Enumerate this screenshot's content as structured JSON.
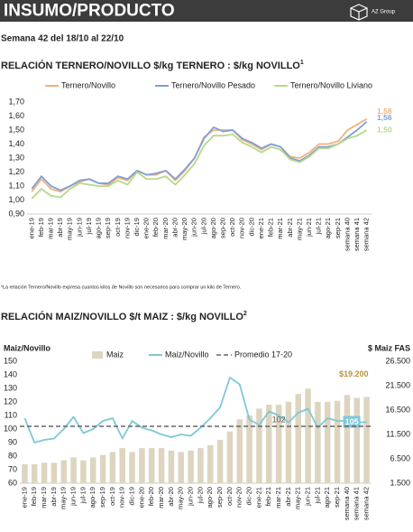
{
  "header": {
    "title": "INSUMO/PRODUCTO",
    "logo": "AZ Group",
    "subtitle": "Semana 42 del 18/10 al 22/10"
  },
  "footnote": "¹La relación Ternero/Novillo expresa cuantos kilos de Novillo son necesarios para comprar un kilo de Ternero.",
  "chart_data": [
    {
      "type": "line",
      "title": "RELACIÓN TERNERO/NOVILLO $/kg TERNERO : $/kg NOVILLO",
      "title_sup": "1",
      "categories": [
        "ene-19",
        "feb-19",
        "mar-19",
        "abr-19",
        "may-19",
        "jun-19",
        "jul-19",
        "ago-19",
        "sep-19",
        "oct-19",
        "nov-19",
        "dic-19",
        "ene-20",
        "feb-20",
        "mar-20",
        "abr-20",
        "may-20",
        "jun-20",
        "jul-20",
        "ago-20",
        "sep-20",
        "oct-20",
        "nov-20",
        "dic-20",
        "ene-21",
        "feb-21",
        "mar-21",
        "abr-21",
        "may-21",
        "jun-21",
        "jul-21",
        "ago-21",
        "sep-21",
        "semana 40",
        "semana 41",
        "semana 42"
      ],
      "ylim": [
        0.9,
        1.7
      ],
      "yticks": [
        {
          "value": 0.9,
          "label": "0,90"
        },
        {
          "value": 1.0,
          "label": "1,00"
        },
        {
          "value": 1.1,
          "label": "1,10"
        },
        {
          "value": 1.2,
          "label": "1,20"
        },
        {
          "value": 1.3,
          "label": "1,30"
        },
        {
          "value": 1.4,
          "label": "1,40"
        },
        {
          "value": 1.5,
          "label": "1,50"
        },
        {
          "value": 1.6,
          "label": "1,60"
        },
        {
          "value": 1.7,
          "label": "1,70"
        }
      ],
      "grid": false,
      "series": [
        {
          "name": "Ternero/Novillo",
          "color": "#f2b27a",
          "values": [
            1.06,
            1.15,
            1.08,
            1.06,
            1.1,
            1.13,
            1.15,
            1.12,
            1.11,
            1.16,
            1.14,
            1.21,
            1.18,
            1.18,
            1.21,
            1.14,
            1.21,
            1.3,
            1.45,
            1.5,
            1.5,
            1.5,
            1.43,
            1.4,
            1.36,
            1.4,
            1.38,
            1.31,
            1.3,
            1.34,
            1.4,
            1.4,
            1.42,
            1.5,
            1.54,
            1.58
          ],
          "value_labels": [
            null,
            null,
            null,
            null,
            null,
            null,
            null,
            null,
            null,
            null,
            null,
            null,
            null,
            null,
            null,
            null,
            null,
            null,
            null,
            null,
            null,
            null,
            null,
            null,
            null,
            null,
            null,
            null,
            null,
            null,
            null,
            null,
            null,
            null,
            null,
            "1,58"
          ]
        },
        {
          "name": "Ternero/Novillo Pesado",
          "color": "#7f9fd6",
          "values": [
            1.08,
            1.17,
            1.1,
            1.07,
            1.1,
            1.14,
            1.15,
            1.12,
            1.12,
            1.17,
            1.15,
            1.21,
            1.18,
            1.19,
            1.21,
            1.15,
            1.22,
            1.3,
            1.44,
            1.52,
            1.49,
            1.5,
            1.44,
            1.41,
            1.37,
            1.4,
            1.38,
            1.3,
            1.28,
            1.32,
            1.38,
            1.38,
            1.4,
            1.45,
            1.5,
            1.56
          ],
          "value_labels": [
            null,
            null,
            null,
            null,
            null,
            null,
            null,
            null,
            null,
            null,
            null,
            null,
            null,
            null,
            null,
            null,
            null,
            null,
            null,
            null,
            null,
            null,
            null,
            null,
            null,
            null,
            null,
            null,
            null,
            null,
            null,
            null,
            null,
            null,
            null,
            "1,56"
          ]
        },
        {
          "name": "Ternero/Novillo Liviano",
          "color": "#b5d98a",
          "values": [
            1.01,
            1.08,
            1.03,
            1.02,
            1.08,
            1.12,
            1.11,
            1.1,
            1.1,
            1.14,
            1.11,
            1.2,
            1.15,
            1.15,
            1.17,
            1.11,
            1.18,
            1.26,
            1.39,
            1.46,
            1.46,
            1.47,
            1.41,
            1.38,
            1.34,
            1.38,
            1.36,
            1.29,
            1.27,
            1.31,
            1.37,
            1.37,
            1.4,
            1.44,
            1.46,
            1.5
          ],
          "value_labels": [
            null,
            null,
            null,
            null,
            null,
            null,
            null,
            null,
            null,
            null,
            null,
            null,
            null,
            null,
            null,
            null,
            null,
            null,
            null,
            null,
            null,
            null,
            null,
            null,
            null,
            null,
            null,
            null,
            null,
            null,
            null,
            null,
            null,
            null,
            null,
            "1,50"
          ]
        }
      ]
    },
    {
      "type": "combo",
      "title": "RELACIÓN MAIZ/NOVILLO $/t MAIZ : $/kg NOVILLO",
      "title_sup": "2",
      "ylabel": "Maiz/Novillo",
      "y2label": "$ Maiz FAS",
      "categories": [
        "ene-19",
        "feb-19",
        "mar-19",
        "abr-19",
        "may-19",
        "jun-19",
        "jul-19",
        "ago-19",
        "sep-19",
        "oct-19",
        "nov-19",
        "dic-19",
        "ene-20",
        "feb-20",
        "mar-20",
        "abr-20",
        "may-20",
        "jun-20",
        "jul-20",
        "ago-20",
        "sep-20",
        "oct-20",
        "nov-20",
        "dic-20",
        "ene-21",
        "feb-21",
        "mar-21",
        "abr-21",
        "may-21",
        "jun-21",
        "jul-21",
        "ago-21",
        "sep-21",
        "semana 40",
        "semana 41",
        "semana 42"
      ],
      "ylim": [
        60,
        150
      ],
      "yticks": [
        60,
        70,
        80,
        90,
        100,
        110,
        120,
        130,
        140,
        150
      ],
      "y2lim": [
        1500,
        26500
      ],
      "y2ticks": [
        {
          "value": 1500,
          "label": "1.500"
        },
        {
          "value": 6500,
          "label": "6.500"
        },
        {
          "value": 11500,
          "label": "11.500"
        },
        {
          "value": 16500,
          "label": "16.500"
        },
        {
          "value": 21500,
          "label": "21.500"
        },
        {
          "value": 26500,
          "label": "26.500"
        }
      ],
      "grid": false,
      "series": [
        {
          "name": "Maiz",
          "type": "bar",
          "axis": "y2",
          "color": "#ddd5c0",
          "label_color": "#b8963a",
          "values": [
            5400,
            5400,
            5700,
            5700,
            6200,
            6800,
            6200,
            6800,
            7300,
            7900,
            8700,
            7900,
            8700,
            8700,
            8700,
            8200,
            7900,
            8200,
            8700,
            9300,
            10400,
            12100,
            14600,
            15400,
            16800,
            17600,
            17600,
            18200,
            19800,
            20900,
            18200,
            18200,
            18400,
            19600,
            19000,
            19200
          ],
          "value_labels": [
            null,
            null,
            null,
            null,
            null,
            null,
            null,
            null,
            null,
            null,
            null,
            null,
            null,
            null,
            null,
            null,
            null,
            null,
            null,
            null,
            null,
            null,
            null,
            null,
            null,
            null,
            null,
            null,
            null,
            null,
            null,
            null,
            null,
            null,
            null,
            "$19.200"
          ]
        },
        {
          "name": "Maiz/Novillo",
          "type": "line",
          "color": "#7ec8d8",
          "label_last": true,
          "values": [
            108,
            90,
            92,
            93,
            100,
            109,
            97,
            100,
            106,
            108,
            93,
            106,
            101,
            99,
            96,
            94,
            96,
            95,
            101,
            108,
            116,
            138,
            133,
            107,
            103,
            113,
            110,
            105,
            112,
            115,
            101,
            108,
            106,
            106,
            105,
            105
          ]
        },
        {
          "name": "Promedio 17-20",
          "type": "hline",
          "color": "#666666",
          "dashed": true,
          "value": 102
        }
      ]
    }
  ]
}
